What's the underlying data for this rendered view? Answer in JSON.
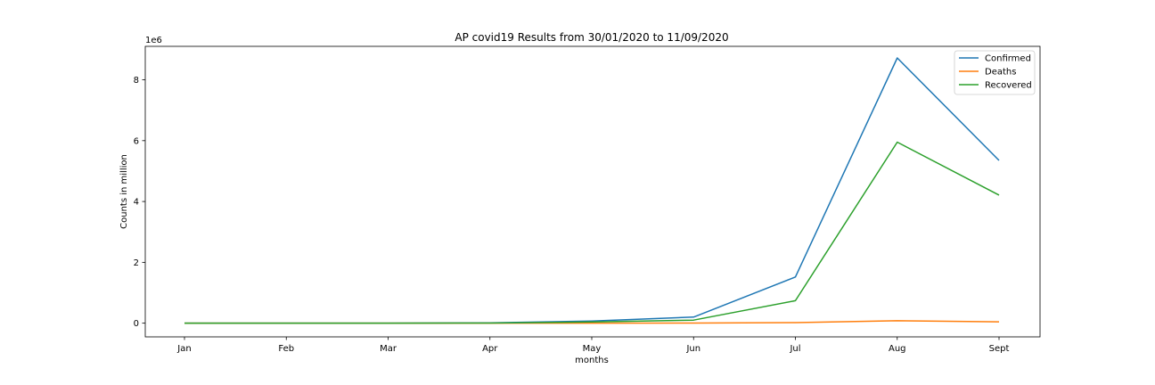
{
  "chart_data": {
    "type": "line",
    "title": "AP covid19 Results from 30/01/2020 to 11/09/2020",
    "xlabel": "months",
    "ylabel": "Counts in million",
    "y_offset_label": "1e6",
    "categories": [
      "Jan",
      "Feb",
      "Mar",
      "Apr",
      "May",
      "Jun",
      "Jul",
      "Aug",
      "Sept"
    ],
    "ylim": [
      -450000,
      9100000
    ],
    "yticks": [
      0,
      2000000,
      4000000,
      6000000,
      8000000
    ],
    "ytick_labels": [
      "0",
      "2",
      "4",
      "6",
      "8"
    ],
    "grid": false,
    "legend_position": "top-right",
    "series": [
      {
        "name": "Confirmed",
        "color": "#1f77b4",
        "values": [
          0,
          0,
          1000,
          10000,
          70000,
          200000,
          1520000,
          8720000,
          5350000
        ]
      },
      {
        "name": "Deaths",
        "color": "#ff7f0e",
        "values": [
          0,
          0,
          0,
          200,
          1000,
          3000,
          20000,
          80000,
          45000
        ]
      },
      {
        "name": "Recovered",
        "color": "#2ca02c",
        "values": [
          0,
          0,
          0,
          5000,
          40000,
          100000,
          740000,
          5950000,
          4210000
        ]
      }
    ]
  }
}
